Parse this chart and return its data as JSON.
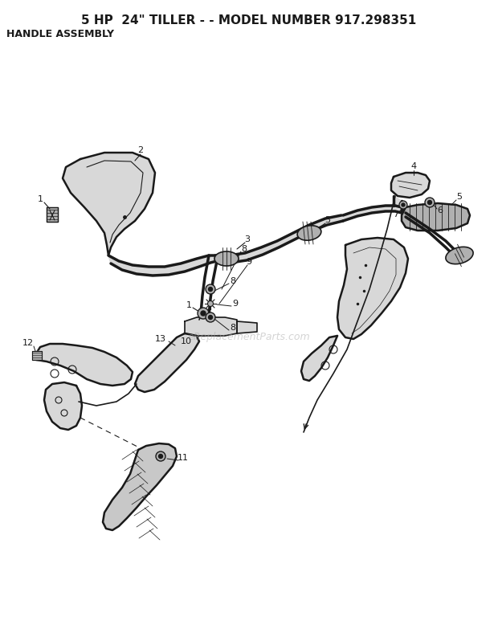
{
  "title": "5 HP  24\" TILLER - - MODEL NUMBER 917.298351",
  "subtitle": "HANDLE ASSEMBLY",
  "bg_color": "#ffffff",
  "title_fontsize": 11,
  "subtitle_fontsize": 9,
  "fig_width": 6.2,
  "fig_height": 7.83,
  "watermark": "eReplacementParts.com",
  "diagram_color": "#1a1a1a",
  "light_fill": "#d8d8d8",
  "medium_fill": "#b0b0b0",
  "dark_fill": "#888888"
}
